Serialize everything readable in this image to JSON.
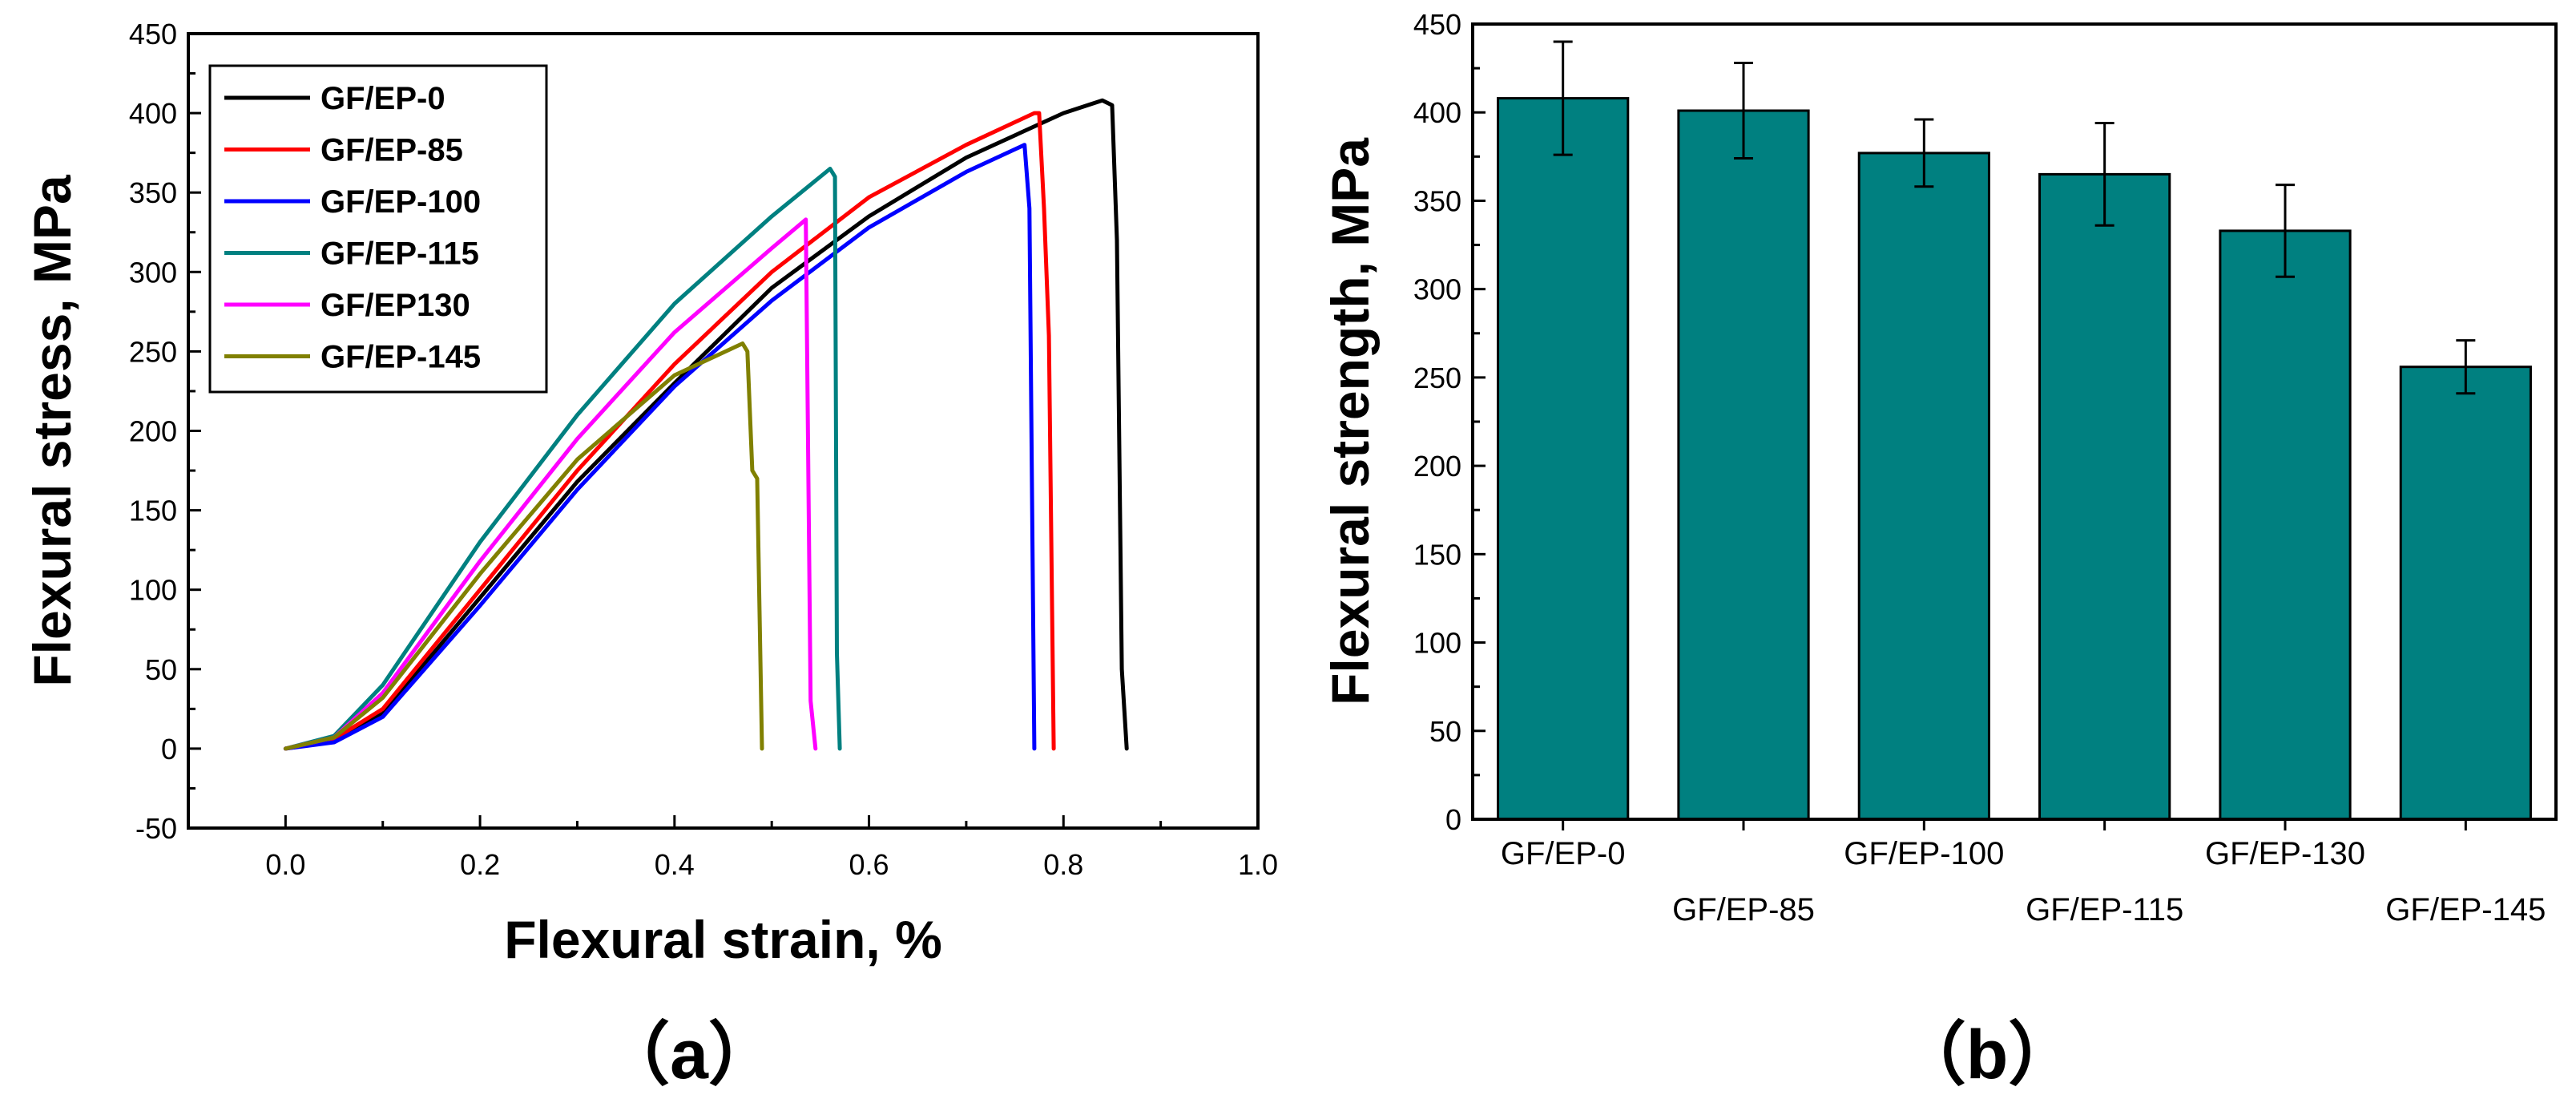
{
  "chart_data": [
    {
      "type": "line",
      "panel_label": "（a）",
      "xlabel": "Flexural strain, %",
      "ylabel": "Flexural stress, MPa",
      "xlim": [
        -0.1,
        1.0
      ],
      "ylim": [
        -50,
        450
      ],
      "xticks": [
        "0.0",
        "0.2",
        "0.4",
        "0.6",
        "0.8",
        "1.0"
      ],
      "yticks": [
        "-50",
        "0",
        "50",
        "100",
        "150",
        "200",
        "250",
        "300",
        "350",
        "400",
        "450"
      ],
      "legend_position": "top-left",
      "series": [
        {
          "name": "GF/EP-0",
          "color": "#000000",
          "x": [
            0.0,
            0.05,
            0.1,
            0.2,
            0.3,
            0.4,
            0.5,
            0.6,
            0.7,
            0.8,
            0.84,
            0.85,
            0.855,
            0.86,
            0.865
          ],
          "y": [
            0,
            5,
            22,
            95,
            168,
            230,
            290,
            335,
            372,
            400,
            408,
            405,
            320,
            50,
            0
          ]
        },
        {
          "name": "GF/EP-85",
          "color": "#ff0000",
          "x": [
            0.0,
            0.05,
            0.1,
            0.2,
            0.3,
            0.4,
            0.5,
            0.6,
            0.7,
            0.77,
            0.775,
            0.78,
            0.785,
            0.79
          ],
          "y": [
            0,
            6,
            25,
            100,
            175,
            242,
            300,
            347,
            380,
            400,
            400,
            340,
            260,
            0
          ]
        },
        {
          "name": "GF/EP-100",
          "color": "#0000ff",
          "x": [
            0.0,
            0.05,
            0.1,
            0.2,
            0.3,
            0.4,
            0.5,
            0.6,
            0.7,
            0.76,
            0.765,
            0.77
          ],
          "y": [
            0,
            4,
            20,
            90,
            163,
            228,
            282,
            328,
            363,
            380,
            340,
            0
          ]
        },
        {
          "name": "GF/EP-115",
          "color": "#008080",
          "x": [
            0.0,
            0.05,
            0.1,
            0.2,
            0.3,
            0.4,
            0.5,
            0.56,
            0.565,
            0.567,
            0.57
          ],
          "y": [
            0,
            8,
            40,
            130,
            210,
            280,
            335,
            365,
            360,
            60,
            0
          ]
        },
        {
          "name": "GF/EP130",
          "color": "#ff00ff",
          "x": [
            0.0,
            0.05,
            0.1,
            0.2,
            0.3,
            0.4,
            0.5,
            0.535,
            0.54,
            0.545
          ],
          "y": [
            0,
            7,
            35,
            118,
            195,
            262,
            315,
            333,
            30,
            0
          ]
        },
        {
          "name": "GF/EP-145",
          "color": "#808000",
          "x": [
            0.0,
            0.05,
            0.1,
            0.2,
            0.3,
            0.4,
            0.47,
            0.475,
            0.48,
            0.485,
            0.49
          ],
          "y": [
            0,
            7,
            32,
            110,
            182,
            235,
            255,
            250,
            175,
            170,
            0
          ]
        }
      ]
    },
    {
      "type": "bar",
      "panel_label": "（b）",
      "xlabel": "",
      "ylabel": "Flexural strength, MPa",
      "ylim": [
        0,
        450
      ],
      "yticks": [
        "0",
        "50",
        "100",
        "150",
        "200",
        "250",
        "300",
        "350",
        "400",
        "450"
      ],
      "bar_color": "#008080",
      "categories": [
        "GF/EP-0",
        "GF/EP-85",
        "GF/EP-100",
        "GF/EP-115",
        "GF/EP-130",
        "GF/EP-145"
      ],
      "values": [
        408,
        401,
        377,
        365,
        333,
        256
      ],
      "errors": [
        32,
        27,
        19,
        29,
        26,
        15
      ]
    }
  ]
}
